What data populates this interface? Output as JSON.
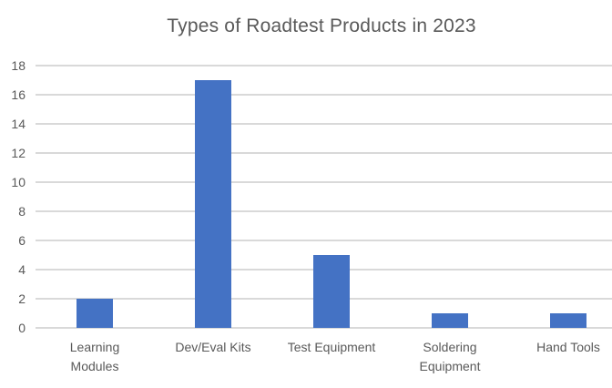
{
  "chart_data": {
    "type": "bar",
    "title": "Types of Roadtest Products in 2023",
    "categories": [
      "Learning Modules",
      "Dev/Eval Kits",
      "Test Equipment",
      "Soldering Equipment",
      "Hand Tools"
    ],
    "category_label_lines": [
      [
        "Learning",
        "Modules"
      ],
      [
        "Dev/Eval Kits"
      ],
      [
        "Test Equipment"
      ],
      [
        "Soldering",
        "Equipment"
      ],
      [
        "Hand Tools"
      ]
    ],
    "values": [
      2,
      17,
      5,
      1,
      1
    ],
    "xlabel": "",
    "ylabel": "",
    "ylim": [
      0,
      18
    ],
    "yticks": [
      0,
      2,
      4,
      6,
      8,
      10,
      12,
      14,
      16,
      18
    ],
    "grid": true,
    "legend": "none",
    "colors": {
      "bar": "#4472C4",
      "gridline": "#D9D9D9",
      "axis_line": "#D9D9D9",
      "title_text": "#595959",
      "tick_text": "#595959",
      "background": "#FFFFFF"
    }
  }
}
